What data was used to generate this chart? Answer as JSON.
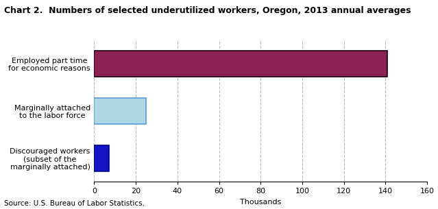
{
  "title": "Chart 2.  Numbers of selected underutilized workers, Oregon, 2013 annual averages",
  "categories": [
    "Discouraged workers\n(subset of the\nmarginally attached)",
    "Marginally attached\nto the labor force",
    "Employed part time\nfor economic reasons"
  ],
  "values": [
    7,
    25,
    141
  ],
  "bar_colors": [
    "#1515C8",
    "#ADD8E6",
    "#8B2252"
  ],
  "bar_edgecolors": [
    "#00008B",
    "#5B9BD5",
    "#1a0010"
  ],
  "xlim": [
    0,
    160
  ],
  "xticks": [
    0,
    20,
    40,
    60,
    80,
    100,
    120,
    140,
    160
  ],
  "xlabel": "Thousands",
  "source": "Source: U.S. Bureau of Labor Statistics.",
  "title_fontsize": 9,
  "tick_fontsize": 8,
  "label_fontsize": 8,
  "source_fontsize": 7.5,
  "background_color": "#FFFFFF",
  "grid_color": "#BBBBBB"
}
